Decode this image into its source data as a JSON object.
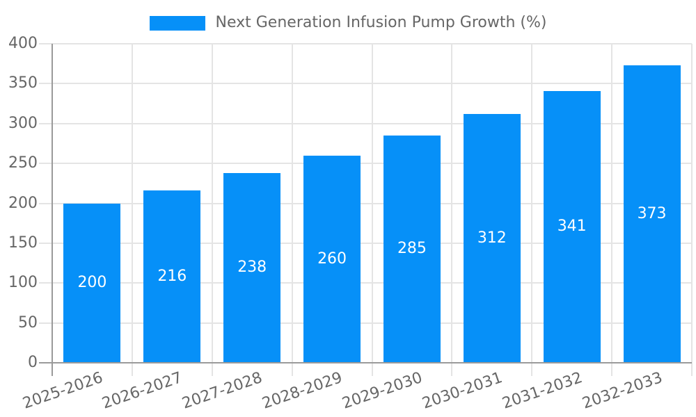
{
  "chart_data": {
    "type": "bar",
    "title": "",
    "series_label": "Next Generation Infusion Pump Growth (%)",
    "categories": [
      "2025-2026",
      "2026-2027",
      "2027-2028",
      "2028-2029",
      "2029-2030",
      "2030-2031",
      "2031-2032",
      "2032-2033"
    ],
    "values": [
      200,
      216,
      238,
      260,
      285,
      312,
      341,
      373
    ],
    "yticks": [
      0,
      50,
      100,
      150,
      200,
      250,
      300,
      350,
      400
    ],
    "ylim": [
      0,
      400
    ],
    "xlabel": "",
    "ylabel": "",
    "grid": "on",
    "legend_position": "top-center",
    "bar_color": "#0690f8",
    "value_label_color": "#ffffff",
    "axis_color": "#9a9a9a",
    "gridline_color": "#e4e4e4",
    "tick_label_color": "#666666"
  }
}
